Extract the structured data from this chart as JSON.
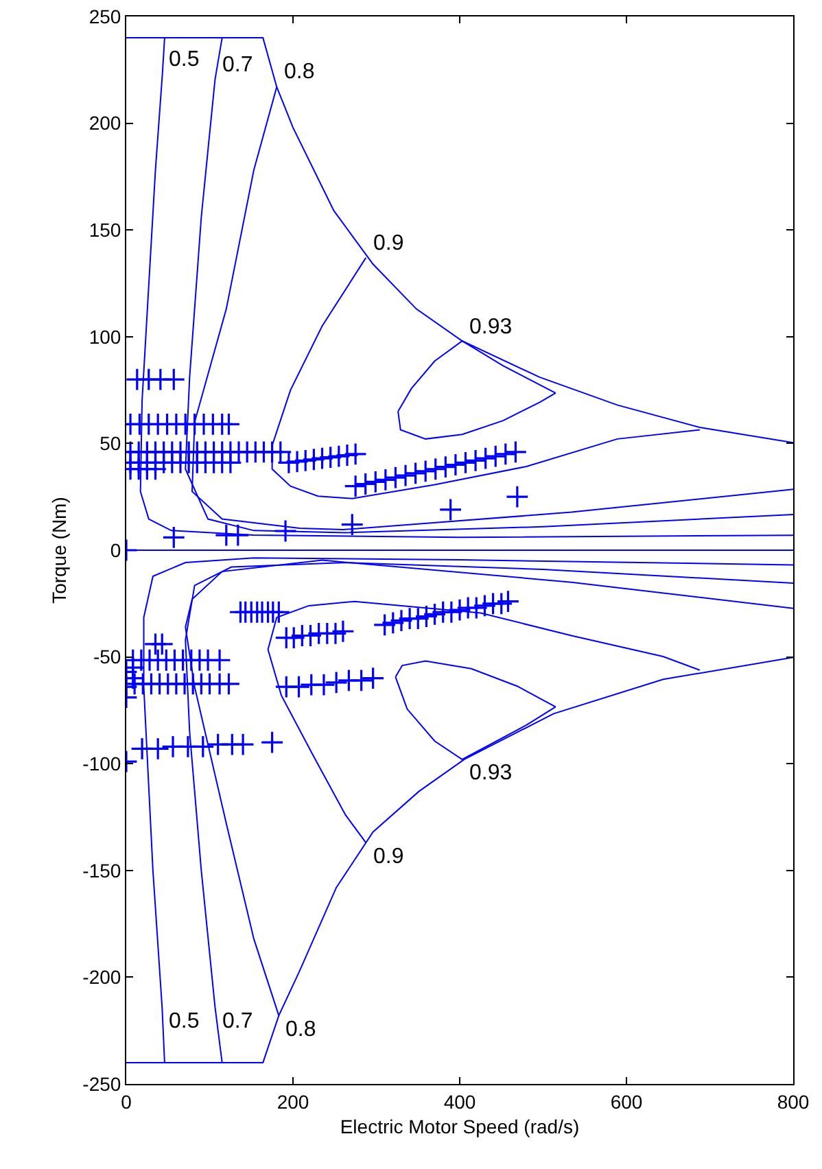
{
  "chart_data": {
    "type": "line",
    "xlabel": "Electric Motor Speed (rad/s)",
    "ylabel": "Torque (Nm)",
    "xlim": [
      0,
      800
    ],
    "xticks": [
      0,
      200,
      400,
      600,
      800
    ],
    "ylim": [
      -250,
      250
    ],
    "yticks": [
      -250,
      -200,
      -150,
      -100,
      -50,
      0,
      50,
      100,
      150,
      200,
      250
    ],
    "grid": false,
    "line_style": "solid",
    "ref_lines": [
      {
        "axis": "y",
        "value": 0,
        "color": "#0000ff"
      }
    ],
    "series": [
      {
        "color": "#0000ff",
        "x": [
          0,
          164,
          180.5,
          200,
          249,
          296,
          348,
          403,
          496,
          589,
          688,
          800
        ],
        "values": [
          240,
          240,
          217,
          198,
          159,
          134,
          113,
          98,
          81,
          68,
          57.5,
          50.4
        ]
      },
      {
        "color": "#0000ff",
        "x": [
          46,
          43.3,
          35,
          27,
          19,
          17,
          27,
          54,
          153,
          400,
          800
        ],
        "values": [
          240,
          222.7,
          178,
          124,
          70,
          27.5,
          14.6,
          9.2,
          7.1,
          6,
          7
        ]
      },
      {
        "color": "#0000ff",
        "x": [
          115,
          106.5,
          90,
          76,
          71,
          98,
          153,
          263,
          500,
          800
        ],
        "values": [
          240,
          220.5,
          156,
          81,
          38,
          14.6,
          9.2,
          8.2,
          11,
          16.7
        ]
      },
      {
        "color": "#0000ff",
        "x": [
          180.5,
          153,
          120,
          82,
          79,
          115,
          208,
          260,
          534,
          800
        ],
        "values": [
          217,
          178,
          113,
          60,
          27.5,
          14.6,
          10.3,
          9.6,
          17.8,
          28.5
        ]
      },
      {
        "color": "#0000ff",
        "x": [
          287.5,
          235,
          197,
          175,
          175,
          197,
          230,
          271,
          370,
          480,
          589,
          688
        ],
        "values": [
          137,
          105,
          75,
          49,
          38,
          30,
          25.3,
          24.2,
          30.7,
          39.2,
          52.1,
          56.4
        ]
      },
      {
        "color": "#0000ff",
        "x": [
          326,
          342,
          370,
          403,
          452,
          515
        ],
        "values": [
          65,
          75.7,
          88.6,
          98,
          86.4,
          73.6
        ]
      },
      {
        "color": "#0000ff",
        "x": [
          326,
          329,
          359,
          403,
          452,
          496,
          515
        ],
        "values": [
          65,
          56.4,
          52.1,
          54.2,
          60.7,
          69.3,
          73.6
        ]
      },
      {
        "color": "#0000ff",
        "x": [
          0,
          164,
          183,
          208,
          252,
          296,
          351,
          405.5,
          512.5,
          644,
          800
        ],
        "values": [
          -240,
          -240,
          -218,
          -197,
          -158,
          -132,
          -113,
          -98,
          -76.6,
          -60.5,
          -50.2
        ]
      },
      {
        "color": "#0000ff",
        "x": [
          46,
          43,
          32,
          21,
          21,
          32,
          71,
          153,
          400,
          800
        ],
        "values": [
          -240,
          -214,
          -150,
          -64,
          -31.5,
          -12.2,
          -5.8,
          -3.6,
          -4.5,
          -6.9
        ]
      },
      {
        "color": "#0000ff",
        "x": [
          115,
          106.5,
          90,
          76,
          71,
          82,
          126,
          263,
          500,
          800
        ],
        "values": [
          -240,
          -214,
          -150,
          -85,
          -42,
          -16.5,
          -7.9,
          -5.8,
          -9,
          -15.4
        ]
      },
      {
        "color": "#0000ff",
        "x": [
          183,
          153,
          120,
          82,
          71,
          79,
          115,
          235,
          534,
          800
        ],
        "values": [
          -218,
          -182,
          -128,
          -64,
          -36,
          -23,
          -10,
          -4.7,
          -15,
          -27.2
        ]
      },
      {
        "color": "#0000ff",
        "x": [
          287.5,
          263,
          224,
          186,
          170,
          180.5,
          219,
          274,
          425,
          534,
          644,
          688
        ],
        "values": [
          -137,
          -124,
          -96,
          -68,
          -46.5,
          -31.5,
          -26,
          -24,
          -29.4,
          -40,
          -49.8,
          -56.2
        ]
      },
      {
        "color": "#0000ff",
        "x": [
          323,
          337,
          370,
          403,
          480,
          515
        ],
        "values": [
          -59.4,
          -74.4,
          -89.4,
          -98,
          -81.9,
          -73.4
        ]
      },
      {
        "color": "#0000ff",
        "x": [
          323,
          331,
          359,
          414,
          469,
          515
        ],
        "values": [
          -59.4,
          -54,
          -51.9,
          -55.5,
          -63.7,
          -73.4
        ]
      },
      {
        "type": "scatter",
        "color": "#0000ff",
        "marker": "cross",
        "x": [
          13,
          27,
          41,
          57,
          5,
          16,
          27,
          38,
          49,
          60,
          71,
          82,
          93,
          104,
          115,
          123,
          5,
          15,
          25,
          35,
          45,
          55,
          65,
          75,
          85,
          95,
          105,
          115,
          125,
          135,
          145,
          155,
          165,
          175,
          185,
          5,
          15,
          25,
          35,
          45,
          55,
          65,
          75,
          85,
          95,
          105,
          115,
          125,
          5,
          15,
          25,
          35,
          195,
          205,
          215,
          225,
          235,
          245,
          255,
          265,
          275,
          275,
          287,
          299,
          311,
          323,
          335,
          347,
          359,
          371,
          383,
          395,
          407,
          419,
          431,
          443,
          455,
          467,
          0,
          57,
          120,
          134,
          191,
          271,
          389,
          469,
          0,
          0,
          0,
          0,
          8,
          8,
          35,
          43,
          8,
          18,
          28,
          38,
          48,
          58,
          68,
          78,
          88,
          98,
          112,
          10,
          20,
          30,
          40,
          50,
          60,
          70,
          80,
          90,
          100,
          112,
          123,
          137,
          143,
          150,
          157,
          163,
          170,
          176,
          183,
          192,
          201,
          211,
          221,
          231,
          241,
          251,
          260,
          192,
          207,
          222,
          237,
          252,
          267,
          282,
          296,
          310,
          320,
          330,
          340,
          350,
          360,
          370,
          380,
          390,
          400,
          410,
          420,
          430,
          440,
          450,
          458,
          19,
          38,
          56,
          74,
          92,
          110,
          127,
          140,
          175
        ],
        "values": [
          80,
          80,
          80,
          80,
          59,
          59,
          59,
          59,
          59,
          59,
          59,
          59,
          59,
          59,
          59,
          59,
          46,
          46,
          46,
          46,
          46,
          46,
          46,
          46,
          46,
          46,
          46,
          46,
          46,
          46,
          46,
          46,
          46,
          46,
          46,
          41,
          41,
          41,
          41,
          41,
          41,
          41,
          41,
          41,
          41,
          41,
          41,
          41,
          38,
          38,
          38,
          38,
          41,
          41.5,
          42,
          42.5,
          43,
          43.5,
          44,
          44.5,
          45,
          30,
          31,
          32,
          33,
          34,
          35,
          36,
          37,
          38,
          39,
          40,
          41,
          42,
          43,
          44,
          45,
          46,
          0,
          6,
          7,
          7,
          9,
          12,
          19,
          25,
          -57,
          -64,
          -69,
          -99,
          -55,
          -60,
          -44,
          -44,
          -51.5,
          -51.5,
          -51.5,
          -51.5,
          -51.5,
          -51.5,
          -51.5,
          -51.5,
          -51.5,
          -51.5,
          -51.5,
          -62.6,
          -62.6,
          -62.6,
          -62.6,
          -62.6,
          -62.6,
          -62.6,
          -62.6,
          -62.6,
          -62.6,
          -62.6,
          -62.6,
          -29,
          -29,
          -29,
          -29,
          -29,
          -29,
          -29,
          -29,
          -41,
          -41,
          -40,
          -40,
          -39,
          -39,
          -39,
          -38,
          -64,
          -64,
          -63,
          -63,
          -62,
          -61,
          -61,
          -60,
          -35,
          -34,
          -33,
          -32,
          -32,
          -31,
          -30,
          -29,
          -29,
          -28,
          -27,
          -27,
          -26,
          -25,
          -25,
          -24,
          -93,
          -93,
          -92,
          -92,
          -92,
          -91,
          -91,
          -91,
          -90
        ]
      }
    ],
    "annotations": [
      {
        "text": "0.5",
        "x": 43.3,
        "y": 222.7
      },
      {
        "text": "0.7",
        "x": 106.5,
        "y": 220.5
      },
      {
        "text": "0.8",
        "x": 180.5,
        "y": 217
      },
      {
        "text": "0.9",
        "x": 287.5,
        "y": 137
      },
      {
        "text": "0.93",
        "x": 403,
        "y": 98
      },
      {
        "text": "0.93",
        "x": 403,
        "y": -98
      },
      {
        "text": "0.9",
        "x": 287.5,
        "y": -137
      },
      {
        "text": "0.8",
        "x": 183,
        "y": -218
      },
      {
        "text": "0.5",
        "x": 43,
        "y": -214
      },
      {
        "text": "0.7",
        "x": 106.5,
        "y": -214
      }
    ]
  }
}
